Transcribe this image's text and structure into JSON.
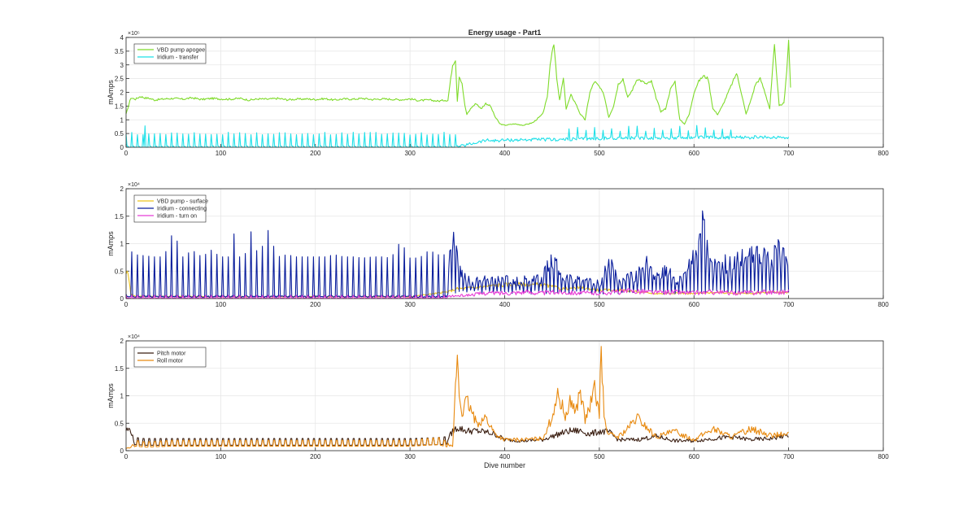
{
  "chart_data": [
    {
      "type": "line",
      "title": "Energy usage - Part1",
      "xlabel": "",
      "ylabel": "mAmps",
      "exponent_label": "×10⁵",
      "xlim": [
        0,
        800
      ],
      "ylim": [
        0,
        400000
      ],
      "xticks": [
        "0",
        "100",
        "200",
        "300",
        "400",
        "500",
        "600",
        "700",
        "800"
      ],
      "yticks": [
        "0",
        "0.5",
        "1",
        "1.5",
        "2",
        "2.5",
        "3",
        "3.5",
        "4"
      ],
      "ytick_values": [
        0,
        50000,
        100000,
        150000,
        200000,
        250000,
        300000,
        350000,
        400000
      ],
      "grid": true,
      "legend_position": "top-left",
      "series": [
        {
          "name": "VBD pump apogee",
          "color": "#7fdb2a",
          "x": [
            0,
            5,
            10,
            15,
            20,
            25,
            30,
            40,
            50,
            60,
            70,
            80,
            90,
            100,
            110,
            120,
            130,
            140,
            150,
            160,
            170,
            180,
            190,
            200,
            210,
            220,
            230,
            240,
            250,
            260,
            270,
            280,
            290,
            300,
            310,
            320,
            330,
            337,
            340,
            343,
            345,
            348,
            350,
            352,
            355,
            358,
            360,
            365,
            370,
            375,
            380,
            385,
            390,
            395,
            400,
            410,
            420,
            430,
            440,
            445,
            448,
            450,
            452,
            455,
            458,
            462,
            465,
            470,
            475,
            480,
            485,
            490,
            495,
            500,
            505,
            510,
            515,
            520,
            525,
            530,
            535,
            540,
            545,
            550,
            555,
            560,
            565,
            570,
            575,
            580,
            585,
            590,
            595,
            600,
            605,
            610,
            615,
            620,
            625,
            630,
            635,
            640,
            645,
            650,
            655,
            660,
            665,
            670,
            675,
            680,
            685,
            690,
            695,
            698,
            700,
            702
          ],
          "y": [
            120000,
            180000,
            175000,
            185000,
            180000,
            178000,
            172000,
            176000,
            178000,
            175000,
            180000,
            174000,
            178000,
            176000,
            175000,
            178000,
            172000,
            176000,
            175000,
            178000,
            173000,
            175000,
            176000,
            174000,
            177000,
            172000,
            176000,
            175000,
            178000,
            174000,
            176000,
            175000,
            173000,
            176000,
            170000,
            172000,
            168000,
            172000,
            170000,
            250000,
            300000,
            320000,
            170000,
            260000,
            230000,
            150000,
            120000,
            145000,
            160000,
            140000,
            160000,
            150000,
            110000,
            85000,
            80000,
            85000,
            80000,
            90000,
            120000,
            180000,
            300000,
            350000,
            380000,
            250000,
            170000,
            250000,
            140000,
            190000,
            160000,
            120000,
            100000,
            200000,
            240000,
            220000,
            190000,
            110000,
            150000,
            230000,
            250000,
            180000,
            210000,
            250000,
            240000,
            230000,
            240000,
            180000,
            130000,
            140000,
            210000,
            240000,
            100000,
            85000,
            120000,
            200000,
            240000,
            260000,
            250000,
            140000,
            120000,
            150000,
            190000,
            230000,
            270000,
            200000,
            120000,
            170000,
            230000,
            250000,
            200000,
            140000,
            370000,
            150000,
            160000,
            280000,
            390000,
            220000
          ],
          "spec": {
            "yRange": [
              50000,
              400000
            ]
          }
        },
        {
          "name": "Iridium - transfer",
          "color": "#1ee0e8",
          "x": [
            0,
            350,
            380,
            390,
            400,
            420,
            440,
            460,
            480,
            500,
            520,
            540,
            560,
            580,
            600,
            620,
            640,
            660,
            680,
            700
          ],
          "y": [
            0,
            0,
            25000,
            24000,
            26000,
            27000,
            28000,
            28000,
            30000,
            32000,
            33000,
            34000,
            33000,
            34000,
            35000,
            36000,
            35000,
            36000,
            36000,
            37000
          ],
          "spec": {
            "yRange": [
              0,
              80000
            ]
          }
        }
      ]
    },
    {
      "type": "line",
      "title": "",
      "xlabel": "",
      "ylabel": "mAmps",
      "exponent_label": "×10⁴",
      "xlim": [
        0,
        800
      ],
      "ylim": [
        0,
        20000
      ],
      "xticks": [
        "0",
        "100",
        "200",
        "300",
        "400",
        "500",
        "600",
        "700",
        "800"
      ],
      "yticks": [
        "0",
        "0.5",
        "1",
        "1.5",
        "2"
      ],
      "ytick_values": [
        0,
        5000,
        10000,
        15000,
        20000
      ],
      "grid": true,
      "legend_position": "top-left",
      "series": [
        {
          "name": "VBD pump - surface",
          "color": "#edc41d",
          "x": [
            0,
            3,
            5,
            10,
            50,
            100,
            200,
            300,
            340,
            350,
            360,
            370,
            380,
            390,
            400,
            410,
            420,
            440,
            460,
            480,
            500,
            520,
            540,
            560,
            580,
            600,
            620,
            640,
            660,
            680,
            700
          ],
          "y": [
            5000,
            4000,
            800,
            400,
            400,
            350,
            350,
            350,
            1200,
            1800,
            1900,
            2000,
            2200,
            2400,
            2500,
            2600,
            2600,
            2500,
            1800,
            2000,
            1500,
            1600,
            1200,
            900,
            1000,
            900,
            1100,
            1000,
            900,
            1200,
            1100
          ],
          "spec": {
            "yRange": [
              0,
              5000
            ]
          }
        },
        {
          "name": "Iridium - connecting",
          "color": "#0a1e9c",
          "x": [
            0,
            7,
            10,
            20,
            30,
            40,
            50,
            60,
            70,
            80,
            90,
            100,
            110,
            115,
            118,
            120,
            123,
            126,
            130,
            140,
            150,
            160,
            170,
            180,
            190,
            200,
            210,
            220,
            230,
            240,
            250,
            260,
            270,
            280,
            290,
            300,
            310,
            320,
            330,
            340,
            345,
            350,
            355,
            360,
            370,
            380,
            390,
            400,
            410,
            420,
            430,
            440,
            450,
            460,
            470,
            480,
            490,
            500,
            510,
            520,
            530,
            540,
            550,
            560,
            570,
            580,
            590,
            600,
            605,
            610,
            615,
            620,
            630,
            640,
            650,
            660,
            670,
            680,
            690,
            700
          ],
          "y": [
            800,
            9800,
            8000,
            7800,
            7600,
            7600,
            12400,
            7600,
            8800,
            7600,
            8800,
            7600,
            7600,
            12800,
            9800,
            7600,
            12400,
            8200,
            13300,
            7600,
            12400,
            7600,
            8000,
            7600,
            7600,
            7600,
            7600,
            8000,
            7600,
            7600,
            7400,
            7600,
            7600,
            7400,
            10500,
            7400,
            7400,
            8800,
            8000,
            8000,
            15800,
            9000,
            6000,
            4000,
            3700,
            4000,
            3800,
            4200,
            3800,
            4000,
            4000,
            4500,
            10000,
            4500,
            4200,
            4000,
            3500,
            3500,
            8000,
            4000,
            4400,
            5000,
            8000,
            4500,
            7000,
            4000,
            4500,
            9800,
            14500,
            19500,
            8000,
            7000,
            7500,
            8000,
            8500,
            9500,
            11000,
            8500,
            10500,
            7000
          ],
          "spec": {
            "yRange": [
              0,
              20000
            ]
          }
        },
        {
          "name": "Iridium - turn on",
          "color": "#e83cd6",
          "x": [
            0,
            100,
            200,
            300,
            340,
            360,
            380,
            400,
            420,
            440,
            460,
            480,
            500,
            520,
            540,
            560,
            580,
            600,
            620,
            640,
            660,
            680,
            700
          ],
          "y": [
            200,
            200,
            200,
            200,
            400,
            600,
            1000,
            1000,
            1200,
            1000,
            1200,
            1000,
            1000,
            1200,
            1400,
            1100,
            1200,
            1000,
            1200,
            1000,
            1100,
            1200,
            1200
          ],
          "spec": {
            "yRange": [
              0,
              2500
            ]
          }
        }
      ]
    },
    {
      "type": "line",
      "title": "",
      "xlabel": "Dive number",
      "ylabel": "mAmps",
      "exponent_label": "×10⁴",
      "xlim": [
        0,
        800
      ],
      "ylim": [
        0,
        20000
      ],
      "xticks": [
        "0",
        "100",
        "200",
        "300",
        "400",
        "500",
        "600",
        "700",
        "800"
      ],
      "yticks": [
        "0",
        "0.5",
        "1",
        "1.5",
        "2"
      ],
      "ytick_values": [
        0,
        5000,
        10000,
        15000,
        20000
      ],
      "grid": true,
      "legend_position": "top-left",
      "series": [
        {
          "name": "Pitch motor",
          "color": "#3b1f12",
          "x": [
            0,
            5,
            8,
            10,
            20,
            50,
            100,
            150,
            200,
            250,
            300,
            330,
            340,
            345,
            350,
            360,
            370,
            380,
            390,
            400,
            420,
            440,
            460,
            470,
            480,
            490,
            500,
            510,
            520,
            540,
            560,
            580,
            600,
            620,
            640,
            660,
            680,
            700
          ],
          "y": [
            3800,
            3800,
            1800,
            2000,
            1800,
            1800,
            1800,
            1800,
            1800,
            1800,
            1800,
            2000,
            2200,
            3500,
            4200,
            3600,
            3600,
            3400,
            3000,
            2000,
            1800,
            2000,
            3200,
            3600,
            3600,
            3000,
            3500,
            3400,
            2000,
            2000,
            2600,
            1800,
            1800,
            2200,
            2500,
            2000,
            2200,
            2800
          ],
          "spec": {
            "yRange": [
              0,
              4500
            ]
          }
        },
        {
          "name": "Roll motor",
          "color": "#e88a10",
          "x": [
            0,
            5,
            10,
            20,
            50,
            100,
            150,
            200,
            250,
            300,
            330,
            340,
            345,
            350,
            352,
            355,
            360,
            370,
            380,
            390,
            400,
            420,
            440,
            450,
            455,
            460,
            465,
            470,
            475,
            480,
            485,
            490,
            495,
            500,
            502,
            505,
            510,
            520,
            530,
            540,
            560,
            580,
            600,
            620,
            640,
            660,
            680,
            700
          ],
          "y": [
            400,
            600,
            1500,
            1200,
            1500,
            1500,
            1500,
            1500,
            1500,
            1500,
            2000,
            1200,
            700,
            18000,
            10000,
            7000,
            9000,
            5000,
            6000,
            3000,
            2000,
            2000,
            2200,
            6000,
            10000,
            8500,
            6000,
            9500,
            7000,
            11000,
            5500,
            8000,
            11000,
            7000,
            19000,
            6000,
            3000,
            2500,
            4000,
            6000,
            2500,
            3500,
            2000,
            4000,
            2500,
            4000,
            2800,
            3000
          ],
          "spec": {
            "yRange": [
              0,
              19000
            ]
          }
        }
      ]
    }
  ]
}
